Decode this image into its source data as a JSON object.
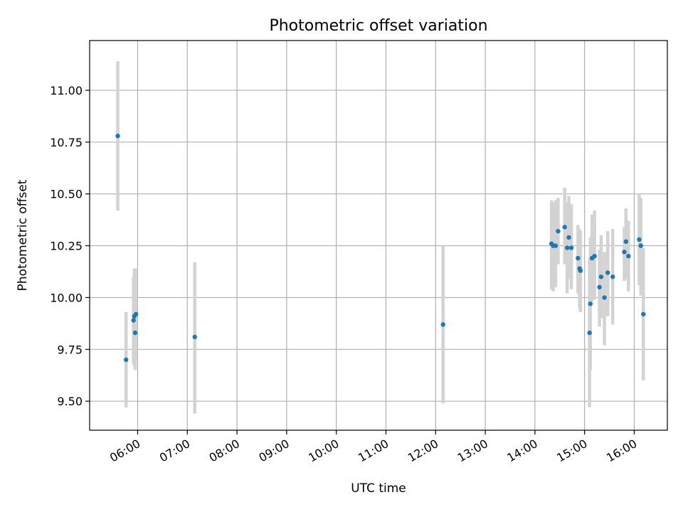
{
  "chart_data": {
    "type": "scatter",
    "title": "Photometric offset variation",
    "xlabel": "UTC time",
    "ylabel": "Photometric offset",
    "x_ticks": [
      "06:00",
      "07:00",
      "08:00",
      "09:00",
      "10:00",
      "11:00",
      "12:00",
      "13:00",
      "14:00",
      "15:00",
      "16:00"
    ],
    "y_ticks": [
      "9.50",
      "9.75",
      "10.00",
      "10.25",
      "10.50",
      "10.75",
      "11.00"
    ],
    "xlim": [
      "05:02",
      "16:40"
    ],
    "ylim": [
      9.36,
      11.24
    ],
    "grid": true,
    "marker_color": "#1f77b4",
    "errorbar_color": "#d3d3d3",
    "points": [
      {
        "t": "05:36",
        "y": 10.78,
        "lo": 10.42,
        "hi": 11.14
      },
      {
        "t": "05:46",
        "y": 9.7,
        "lo": 9.47,
        "hi": 9.93
      },
      {
        "t": "05:55",
        "y": 9.89,
        "lo": 9.68,
        "hi": 10.1
      },
      {
        "t": "05:56",
        "y": 9.91,
        "lo": 9.67,
        "hi": 10.14
      },
      {
        "t": "05:57",
        "y": 9.83,
        "lo": 9.65,
        "hi": 10.02
      },
      {
        "t": "05:58",
        "y": 9.92,
        "lo": 9.69,
        "hi": 10.14
      },
      {
        "t": "07:09",
        "y": 9.81,
        "lo": 9.44,
        "hi": 10.17
      },
      {
        "t": "12:09",
        "y": 9.87,
        "lo": 9.49,
        "hi": 10.25
      },
      {
        "t": "14:20",
        "y": 10.26,
        "lo": 10.04,
        "hi": 10.47
      },
      {
        "t": "14:22",
        "y": 10.25,
        "lo": 10.03,
        "hi": 10.46
      },
      {
        "t": "14:25",
        "y": 10.25,
        "lo": 10.05,
        "hi": 10.47
      },
      {
        "t": "14:28",
        "y": 10.32,
        "lo": 10.16,
        "hi": 10.48
      },
      {
        "t": "14:36",
        "y": 10.34,
        "lo": 10.16,
        "hi": 10.53
      },
      {
        "t": "14:39",
        "y": 10.24,
        "lo": 10.02,
        "hi": 10.46
      },
      {
        "t": "14:41",
        "y": 10.29,
        "lo": 10.09,
        "hi": 10.49
      },
      {
        "t": "14:44",
        "y": 10.24,
        "lo": 10.04,
        "hi": 10.45
      },
      {
        "t": "14:52",
        "y": 10.19,
        "lo": 10.02,
        "hi": 10.35
      },
      {
        "t": "14:54",
        "y": 10.14,
        "lo": 9.95,
        "hi": 10.33
      },
      {
        "t": "14:55",
        "y": 10.13,
        "lo": 9.93,
        "hi": 10.32
      },
      {
        "t": "15:06",
        "y": 9.83,
        "lo": 9.47,
        "hi": 10.19
      },
      {
        "t": "15:07",
        "y": 9.97,
        "lo": 9.65,
        "hi": 10.29
      },
      {
        "t": "15:09",
        "y": 10.19,
        "lo": 9.98,
        "hi": 10.4
      },
      {
        "t": "15:12",
        "y": 10.2,
        "lo": 9.99,
        "hi": 10.42
      },
      {
        "t": "15:18",
        "y": 10.05,
        "lo": 9.86,
        "hi": 10.23
      },
      {
        "t": "15:20",
        "y": 10.1,
        "lo": 9.9,
        "hi": 10.3
      },
      {
        "t": "15:24",
        "y": 10.0,
        "lo": 9.77,
        "hi": 10.22
      },
      {
        "t": "15:28",
        "y": 10.12,
        "lo": 9.91,
        "hi": 10.32
      },
      {
        "t": "15:34",
        "y": 10.1,
        "lo": 9.87,
        "hi": 10.33
      },
      {
        "t": "15:48",
        "y": 10.22,
        "lo": 10.08,
        "hi": 10.34
      },
      {
        "t": "15:50",
        "y": 10.27,
        "lo": 10.09,
        "hi": 10.43
      },
      {
        "t": "15:53",
        "y": 10.2,
        "lo": 10.03,
        "hi": 10.37
      },
      {
        "t": "16:06",
        "y": 10.28,
        "lo": 10.06,
        "hi": 10.5
      },
      {
        "t": "16:08",
        "y": 10.25,
        "lo": 10.01,
        "hi": 10.48
      },
      {
        "t": "16:11",
        "y": 9.92,
        "lo": 9.6,
        "hi": 10.24
      }
    ]
  }
}
